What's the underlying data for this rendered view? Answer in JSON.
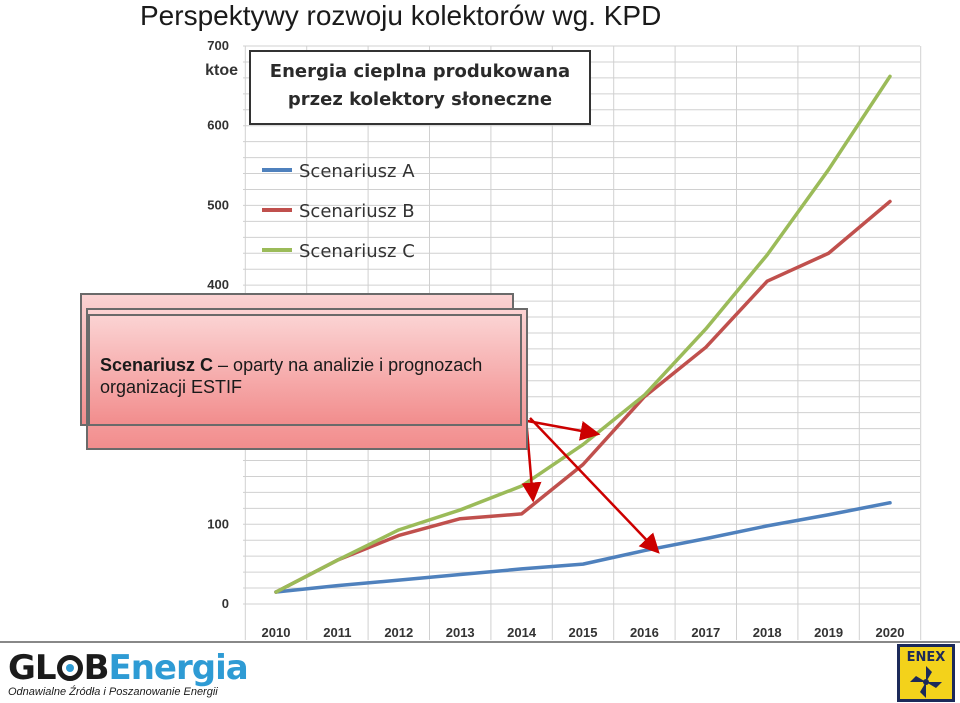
{
  "slide": {
    "title": "Perspektywy rozwoju kolektorów wg. KPD"
  },
  "chart_data": {
    "type": "line",
    "title": "Energia cieplna produkowana przez kolektory słoneczne",
    "title_lines": [
      "Energia cieplna produkowana",
      "przez kolektory słoneczne"
    ],
    "ylabel": "ktoe",
    "xlabel": "",
    "x": [
      2010,
      2011,
      2012,
      2013,
      2014,
      2015,
      2016,
      2017,
      2018,
      2019,
      2020
    ],
    "ylim": [
      0,
      700
    ],
    "yticks": [
      0,
      100,
      400,
      500,
      600,
      700
    ],
    "grid": true,
    "legend_position": "top-left",
    "series": [
      {
        "name": "Scenariusz A",
        "color": "#4f81bd",
        "values": [
          15,
          23,
          30,
          37,
          44,
          50,
          67,
          82,
          98,
          112,
          127
        ]
      },
      {
        "name": "Scenariusz B",
        "color": "#c0504d",
        "values": [
          15,
          55,
          86,
          107,
          113,
          175,
          260,
          322,
          405,
          440,
          505
        ]
      },
      {
        "name": "Scenariusz C",
        "color": "#9bbb59",
        "values": [
          15,
          55,
          93,
          118,
          148,
          200,
          262,
          345,
          438,
          545,
          662
        ]
      }
    ]
  },
  "callout": {
    "scenario_name": "Scenariusz C",
    "text_rest": " – oparty na analizie i prognozach organizacji ESTIF"
  },
  "footer": {
    "logo_left": {
      "brand_a": "GL",
      "brand_b": "B",
      "brand_c": "Energia",
      "tagline": "Odnawialne Źródła i Poszanowanie Energii"
    },
    "logo_right": {
      "brand": "ENEX"
    }
  }
}
